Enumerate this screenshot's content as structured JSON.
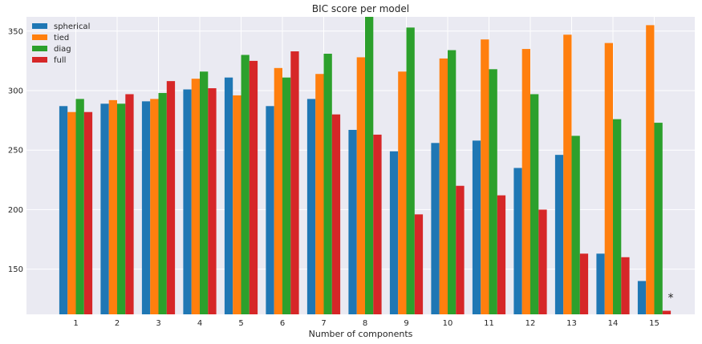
{
  "chart_data": {
    "type": "bar",
    "title": "BIC score per model",
    "xlabel": "Number of components",
    "ylabel": "",
    "categories": [
      "1",
      "2",
      "3",
      "4",
      "5",
      "6",
      "7",
      "8",
      "9",
      "10",
      "11",
      "12",
      "13",
      "14",
      "15"
    ],
    "ylim": [
      112,
      362
    ],
    "yticks": [
      150,
      200,
      250,
      300,
      350
    ],
    "grid": true,
    "legend_position": "top-left",
    "series": [
      {
        "name": "spherical",
        "color": "#1f77b4",
        "values": [
          287,
          289,
          291,
          301,
          311,
          287,
          293,
          267,
          249,
          256,
          258,
          235,
          246,
          163,
          140
        ]
      },
      {
        "name": "tied",
        "color": "#ff7f0e",
        "values": [
          282,
          292,
          293,
          310,
          296,
          319,
          314,
          328,
          316,
          327,
          343,
          335,
          347,
          340,
          355
        ]
      },
      {
        "name": "diag",
        "color": "#2ca02c",
        "values": [
          293,
          289,
          298,
          316,
          330,
          311,
          331,
          363,
          353,
          334,
          318,
          297,
          262,
          276,
          273
        ]
      },
      {
        "name": "full",
        "color": "#d62728",
        "values": [
          282,
          297,
          308,
          302,
          325,
          333,
          280,
          263,
          196,
          220,
          212,
          200,
          163,
          160,
          115
        ]
      }
    ],
    "annotation": {
      "text": "*",
      "category": "15"
    }
  }
}
